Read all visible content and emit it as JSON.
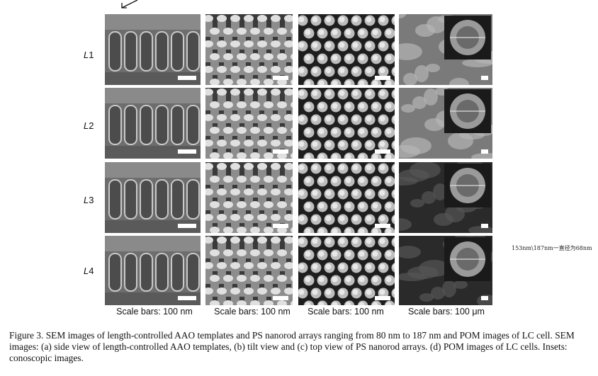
{
  "rows": [
    {
      "letter": "L",
      "num": "1"
    },
    {
      "letter": "L",
      "num": "2"
    },
    {
      "letter": "L",
      "num": "3"
    },
    {
      "letter": "L",
      "num": "4"
    }
  ],
  "column_captions": [
    "Scale bars: 100 nm",
    "Scale bars: 100 nm",
    "Scale bars: 100 nm",
    "Scale bars: 100 μm"
  ],
  "side_note": "153nm\\187nm一直径为68nm",
  "caption": "Figure 3.  SEM images of length-controlled AAO templates and PS nanorod arrays ranging from 80 nm to 187 nm and POM images of LC cell. SEM images: (a) side view of length-controlled AAO templates, (b) tilt view and (c) top view of PS nanorod arrays. (d) POM images of LC cells. Insets: conoscopic images."
}
